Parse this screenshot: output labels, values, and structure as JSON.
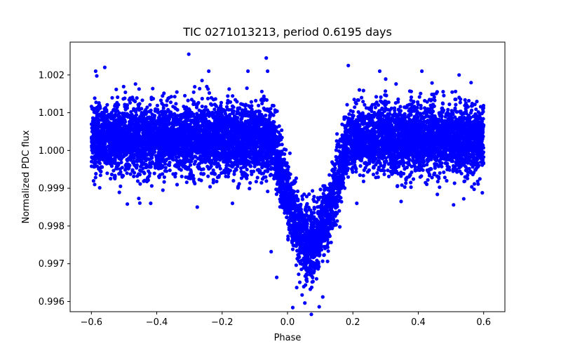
{
  "chart_data": {
    "type": "scatter",
    "title": "TIC 0271013213, period 0.6195 days",
    "xlabel": "Phase",
    "ylabel": "Normalized PDC flux",
    "xlim": [
      -0.665,
      0.665
    ],
    "ylim": [
      0.99573,
      1.00287
    ],
    "x_ticks": [
      -0.6,
      -0.4,
      -0.2,
      0.0,
      0.2,
      0.4,
      0.6
    ],
    "x_tick_labels": [
      "−0.6",
      "−0.4",
      "−0.2",
      "0.0",
      "0.2",
      "0.4",
      "0.6"
    ],
    "y_ticks": [
      0.996,
      0.997,
      0.998,
      0.999,
      1.0,
      1.001,
      1.002
    ],
    "y_tick_labels": [
      "0.996",
      "0.997",
      "0.998",
      "0.999",
      "1.000",
      "1.001",
      "1.002"
    ],
    "marker_color": "#0000ff",
    "legend": "none",
    "grid": false,
    "series": [
      {
        "name": "PDC flux",
        "model": {
          "baseline": 1.0003,
          "baseline_scatter": 0.00045,
          "transit_center_phase": 0.07,
          "transit_depth": 0.0028,
          "transit_half_width": 0.115,
          "phase_range": [
            -0.6,
            0.6
          ],
          "n_points": 9000
        },
        "outliers": [
          {
            "x": -0.587,
            "y": 1.0021
          },
          {
            "x": -0.559,
            "y": 1.0022
          },
          {
            "x": -0.302,
            "y": 1.00255
          },
          {
            "x": -0.241,
            "y": 1.0021
          },
          {
            "x": -0.121,
            "y": 1.0021
          },
          {
            "x": -0.065,
            "y": 1.00245
          },
          {
            "x": -0.061,
            "y": 1.0021
          },
          {
            "x": 0.186,
            "y": 1.00225
          },
          {
            "x": 0.282,
            "y": 1.0021
          },
          {
            "x": 0.411,
            "y": 1.0021
          },
          {
            "x": 0.525,
            "y": 1.002
          },
          {
            "x": -0.49,
            "y": 0.99858
          },
          {
            "x": -0.276,
            "y": 0.9985
          },
          {
            "x": -0.455,
            "y": 0.99873
          },
          {
            "x": -0.59,
            "y": 0.9991
          },
          {
            "x": 0.508,
            "y": 0.99856
          },
          {
            "x": 0.539,
            "y": 0.99872
          },
          {
            "x": 0.596,
            "y": 0.99888
          },
          {
            "x": 0.016,
            "y": 0.99584
          },
          {
            "x": 0.073,
            "y": 0.99566
          },
          {
            "x": 0.053,
            "y": 0.99596
          },
          {
            "x": 0.097,
            "y": 0.99586
          },
          {
            "x": 0.108,
            "y": 0.99612
          },
          {
            "x": 0.028,
            "y": 0.99637
          },
          {
            "x": -0.05,
            "y": 0.99732
          },
          {
            "x": -0.033,
            "y": 0.99664
          }
        ]
      }
    ]
  }
}
